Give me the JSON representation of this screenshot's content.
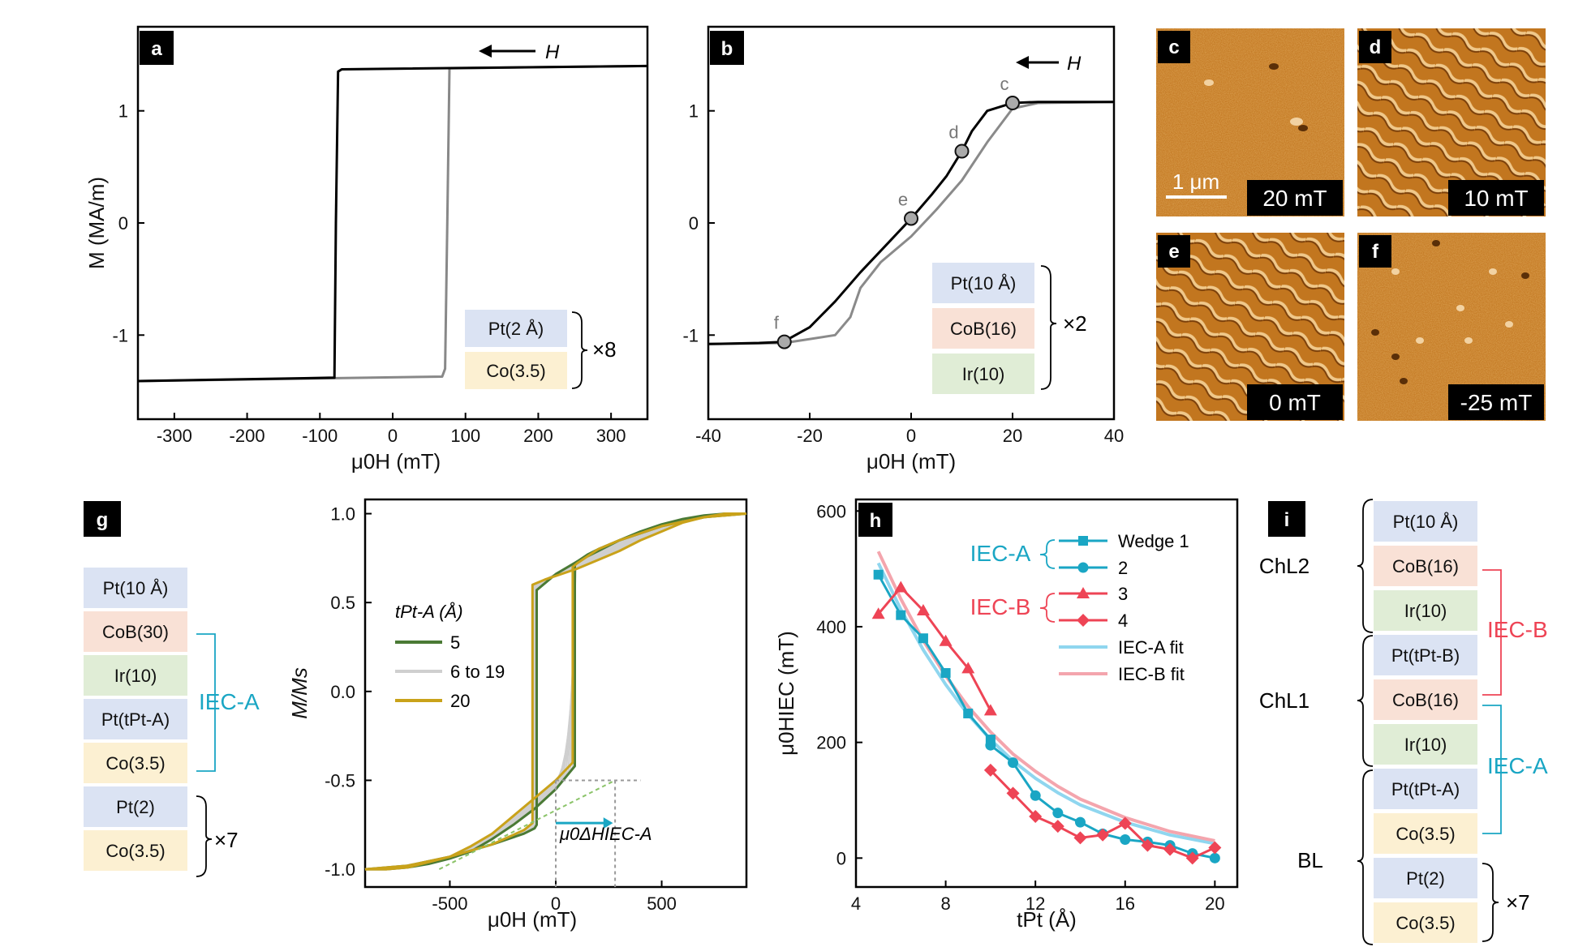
{
  "chart_data": [
    {
      "id": "a",
      "type": "line",
      "panel_label": "a",
      "xlabel": "μ0H (mT)",
      "ylabel": "M (MA/m)",
      "xlim": [
        -350,
        350
      ],
      "ylim": [
        -1.75,
        1.75
      ],
      "xticks": [
        "-300",
        "-200",
        "-100",
        "0",
        "100",
        "200",
        "300"
      ],
      "yticks": [
        "-1",
        "0",
        "1"
      ],
      "field_arrow": "H",
      "series": [
        {
          "color": "#000000",
          "x": [
            350,
            -70,
            -75,
            -78,
            -80,
            -350
          ],
          "y": [
            1.4,
            1.37,
            1.35,
            0,
            -1.38,
            -1.41
          ]
        },
        {
          "color": "#888888",
          "x": [
            -350,
            68,
            72,
            75,
            78,
            350
          ],
          "y": [
            -1.41,
            -1.37,
            -1.3,
            0,
            1.38,
            1.4
          ]
        }
      ],
      "stack": [
        {
          "label": "Pt(2 Å)",
          "color": "#dbe3f3"
        },
        {
          "label": "Co(3.5)",
          "color": "#fcf0d2"
        }
      ],
      "repeat": "×8"
    },
    {
      "id": "b",
      "type": "line",
      "panel_label": "b",
      "xlabel": "μ0H (mT)",
      "ylabel": "",
      "xlim": [
        -40,
        40
      ],
      "ylim": [
        -1.75,
        1.75
      ],
      "xticks": [
        "-40",
        "-20",
        "0",
        "20",
        "40"
      ],
      "yticks": [
        "-1",
        "0",
        "1"
      ],
      "field_arrow": "H",
      "series": [
        {
          "color": "#000000",
          "x": [
            40,
            25,
            20,
            15,
            12,
            10,
            7,
            4,
            0,
            -5,
            -10,
            -15,
            -20,
            -24,
            -25,
            -30,
            -40
          ],
          "y": [
            1.08,
            1.08,
            1.07,
            1.0,
            0.82,
            0.64,
            0.42,
            0.25,
            0.04,
            -0.2,
            -0.44,
            -0.7,
            -0.93,
            -1.03,
            -1.06,
            -1.07,
            -1.08
          ]
        },
        {
          "color": "#8a8a8a",
          "x": [
            -40,
            -25,
            -15,
            -12,
            -10,
            -6,
            0,
            5,
            10,
            15,
            20,
            25,
            40
          ],
          "y": [
            -1.08,
            -1.07,
            -1.0,
            -0.84,
            -0.58,
            -0.35,
            -0.12,
            0.12,
            0.38,
            0.72,
            1.02,
            1.07,
            1.08
          ]
        }
      ],
      "markers": [
        {
          "label": "c",
          "x": 20,
          "y": 1.07
        },
        {
          "label": "d",
          "x": 10,
          "y": 0.64
        },
        {
          "label": "e",
          "x": 0,
          "y": 0.04
        },
        {
          "label": "f",
          "x": -25,
          "y": -1.06
        }
      ],
      "stack": [
        {
          "label": "Pt(10 Å)",
          "color": "#dbe3f3"
        },
        {
          "label": "CoB(16)",
          "color": "#f9e1d6"
        },
        {
          "label": "Ir(10)",
          "color": "#e0edd6"
        }
      ],
      "repeat": "×2"
    },
    {
      "id": "g",
      "type": "line",
      "panel_label": "g",
      "xlabel": "μ0H (mT)",
      "ylabel": "M/Ms",
      "xlim": [
        -900,
        900
      ],
      "ylim": [
        -1.1,
        1.08
      ],
      "xticks": [
        "-500",
        "0",
        "500"
      ],
      "yticks": [
        "-1.0",
        "-0.5",
        "0.0",
        "0.5",
        "1.0"
      ],
      "legend_title": "tPt-A (Å)",
      "legend": [
        {
          "name": "5",
          "color": "#4a7a35"
        },
        {
          "name": "6 to 19",
          "color": "#cfcfcf"
        },
        {
          "name": "20",
          "color": "#c9a21a"
        }
      ],
      "annotation": "μ0ΔHIEC-A",
      "series": [
        {
          "color": "#4a7a35",
          "x": [
            -900,
            -700,
            -500,
            -300,
            -150,
            -100,
            -90,
            -90,
            0,
            100,
            200,
            300,
            400,
            500,
            600,
            700,
            800,
            900
          ],
          "y": [
            -1.0,
            -0.98,
            -0.93,
            -0.86,
            -0.8,
            -0.77,
            -0.75,
            0.57,
            0.66,
            0.73,
            0.79,
            0.85,
            0.9,
            0.94,
            0.97,
            0.99,
            1.0,
            1.0
          ]
        },
        {
          "color": "#4a7a35",
          "x": [
            900,
            700,
            500,
            300,
            200,
            150,
            100,
            90,
            90,
            0,
            -100,
            -200,
            -300,
            -400,
            -500,
            -600,
            -700,
            -800,
            -900
          ],
          "y": [
            1.0,
            0.98,
            0.93,
            0.85,
            0.8,
            0.77,
            0.73,
            0.71,
            -0.42,
            -0.55,
            -0.66,
            -0.75,
            -0.83,
            -0.9,
            -0.94,
            -0.97,
            -0.99,
            -1.0,
            -1.0
          ]
        },
        {
          "color": "#c9a21a",
          "x": [
            -900,
            -700,
            -500,
            -300,
            -150,
            -120,
            -110,
            -110,
            -50,
            0,
            100,
            200,
            300,
            400,
            500,
            600,
            700,
            800,
            900
          ],
          "y": [
            -1.0,
            -0.98,
            -0.93,
            -0.86,
            -0.78,
            -0.75,
            -0.74,
            0.6,
            0.63,
            0.65,
            0.69,
            0.74,
            0.79,
            0.85,
            0.9,
            0.95,
            0.98,
            1.0,
            1.0
          ]
        },
        {
          "color": "#c9a21a",
          "x": [
            900,
            700,
            500,
            300,
            200,
            100,
            80,
            80,
            0,
            -100,
            -200,
            -300,
            -400,
            -500,
            -600,
            -700,
            -800,
            -900
          ],
          "y": [
            1.0,
            0.98,
            0.93,
            0.85,
            0.8,
            0.72,
            0.7,
            -0.4,
            -0.5,
            -0.6,
            -0.7,
            -0.8,
            -0.87,
            -0.93,
            -0.96,
            -0.99,
            -1.0,
            -1.0
          ]
        }
      ],
      "stack": [
        {
          "label": "Pt(10 Å)",
          "color": "#dbe3f3"
        },
        {
          "label": "CoB(30)",
          "color": "#f9e1d6"
        },
        {
          "label": "Ir(10)",
          "color": "#e0edd6"
        },
        {
          "label": "Pt(tPt-A)",
          "color": "#dbe3f3"
        },
        {
          "label": "Co(3.5)",
          "color": "#fcf0d2"
        },
        {
          "label": "Pt(2)",
          "color": "#dbe3f3"
        },
        {
          "label": "Co(3.5)",
          "color": "#fcf0d2"
        }
      ],
      "bracket_label": "IEC-A",
      "repeat": "×7"
    },
    {
      "id": "h",
      "type": "line",
      "panel_label": "h",
      "xlabel": "tPt (Å)",
      "ylabel": "μ0HIEC (mT)",
      "xlim": [
        4,
        21
      ],
      "ylim": [
        -50,
        620
      ],
      "xticks": [
        "4",
        "8",
        "12",
        "16",
        "20"
      ],
      "yticks": [
        "0",
        "200",
        "400",
        "600"
      ],
      "groups": [
        "IEC-A",
        "IEC-B"
      ],
      "series": [
        {
          "name": "Wedge 1",
          "group": "IEC-A",
          "marker": "square",
          "color": "#1aa6c4",
          "x": [
            5,
            6,
            7,
            8,
            9,
            10
          ],
          "y": [
            490,
            420,
            380,
            320,
            250,
            205
          ]
        },
        {
          "name": "2",
          "group": "IEC-A",
          "marker": "circle",
          "color": "#1aa6c4",
          "x": [
            10,
            11,
            12,
            13,
            14,
            15,
            16,
            17,
            18,
            19,
            20
          ],
          "y": [
            195,
            165,
            108,
            78,
            62,
            42,
            32,
            28,
            22,
            8,
            0
          ]
        },
        {
          "name": "3",
          "group": "IEC-B",
          "marker": "triangle",
          "color": "#ee4455",
          "x": [
            5,
            6,
            7,
            8,
            9,
            10
          ],
          "y": [
            422,
            468,
            428,
            375,
            328,
            255
          ]
        },
        {
          "name": "4",
          "group": "IEC-B",
          "marker": "diamond",
          "color": "#ee4455",
          "x": [
            10,
            11,
            12,
            13,
            14,
            15,
            16,
            17,
            18,
            19,
            20
          ],
          "y": [
            152,
            112,
            72,
            55,
            35,
            40,
            60,
            22,
            15,
            0,
            18
          ]
        },
        {
          "name": "IEC-A fit",
          "marker": "none",
          "color": "#8fd6ef",
          "x": [
            5,
            6,
            7,
            8,
            9,
            10,
            11,
            12,
            13,
            14,
            16,
            18,
            20
          ],
          "y": [
            510,
            430,
            360,
            300,
            248,
            205,
            168,
            138,
            113,
            92,
            62,
            40,
            25
          ]
        },
        {
          "name": "IEC-B fit",
          "marker": "none",
          "color": "#f4a5ad",
          "x": [
            5,
            6,
            7,
            8,
            9,
            10,
            11,
            12,
            13,
            14,
            16,
            18,
            20
          ],
          "y": [
            530,
            448,
            376,
            315,
            262,
            218,
            180,
            150,
            124,
            102,
            70,
            46,
            30
          ]
        }
      ]
    }
  ],
  "images": [
    {
      "label": "c",
      "field": "20 mT",
      "scalebar": "1 μm"
    },
    {
      "label": "d",
      "field": "10 mT"
    },
    {
      "label": "e",
      "field": "0 mT"
    },
    {
      "label": "f",
      "field": "-25 mT"
    }
  ],
  "panel_i": {
    "label": "i",
    "stack": [
      {
        "label": "Pt(10 Å)",
        "color": "#dbe3f3"
      },
      {
        "label": "CoB(16)",
        "color": "#f9e1d6"
      },
      {
        "label": "Ir(10)",
        "color": "#e0edd6"
      },
      {
        "label": "Pt(tPt-B)",
        "color": "#dbe3f3"
      },
      {
        "label": "CoB(16)",
        "color": "#f9e1d6"
      },
      {
        "label": "Ir(10)",
        "color": "#e0edd6"
      },
      {
        "label": "Pt(tPt-A)",
        "color": "#dbe3f3"
      },
      {
        "label": "Co(3.5)",
        "color": "#fcf0d2"
      },
      {
        "label": "Pt(2)",
        "color": "#dbe3f3"
      },
      {
        "label": "Co(3.5)",
        "color": "#fcf0d2"
      }
    ],
    "groups": [
      "ChL2",
      "ChL1",
      "BL"
    ],
    "iec_labels": [
      "IEC-B",
      "IEC-A"
    ],
    "repeat": "×7"
  },
  "colors": {
    "iec_a": "#1aa6c4",
    "iec_b": "#ee4455"
  }
}
